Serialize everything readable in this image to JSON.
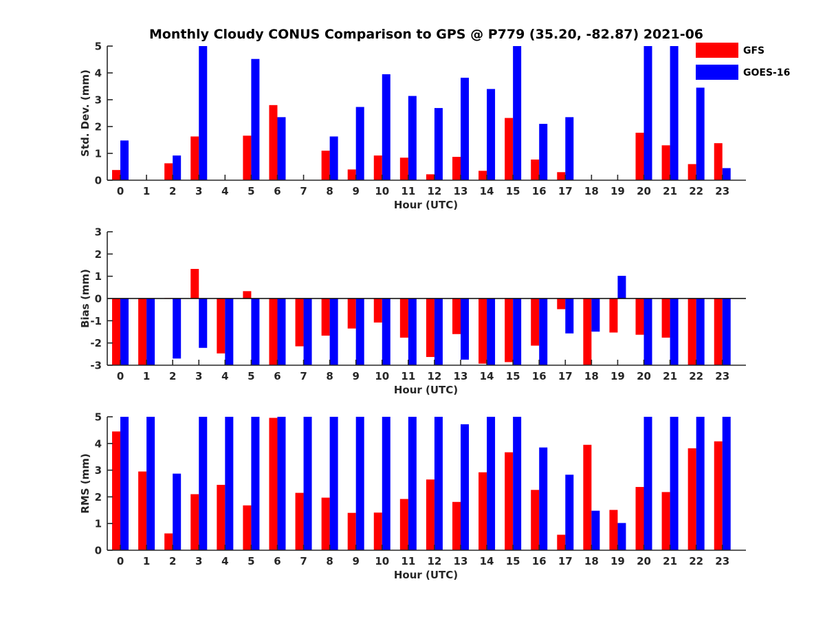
{
  "title": "Monthly Cloudy CONUS Comparison to GPS @ P779 (35.20, -82.87) 2021-06",
  "colors": {
    "GFS": "#ff0000",
    "GOES-16": "#0000ff"
  },
  "legend": {
    "items": [
      "GFS",
      "GOES-16"
    ],
    "placement": "top-right"
  },
  "chart_data": [
    {
      "type": "bar",
      "ylabel": "Std. Dev. (mm)",
      "xlabel": "Hour (UTC)",
      "ylim": [
        0,
        5
      ],
      "yticks": [
        0,
        1,
        2,
        3,
        4,
        5
      ],
      "categories": [
        "0",
        "1",
        "2",
        "3",
        "4",
        "5",
        "6",
        "7",
        "8",
        "9",
        "10",
        "11",
        "12",
        "13",
        "14",
        "15",
        "16",
        "17",
        "18",
        "19",
        "20",
        "21",
        "22",
        "23"
      ],
      "series": [
        {
          "name": "GFS",
          "values": [
            0.38,
            null,
            0.63,
            1.63,
            null,
            1.66,
            2.8,
            null,
            1.1,
            0.4,
            0.92,
            0.84,
            0.22,
            0.87,
            0.35,
            2.32,
            0.77,
            0.3,
            null,
            null,
            1.77,
            1.3,
            0.6,
            1.38
          ]
        },
        {
          "name": "GOES-16",
          "values": [
            1.48,
            null,
            0.92,
            5,
            null,
            4.52,
            2.35,
            null,
            1.63,
            2.73,
            3.95,
            3.14,
            2.69,
            3.82,
            3.4,
            5,
            2.1,
            2.35,
            null,
            null,
            5,
            5,
            3.45,
            0.45
          ]
        }
      ]
    },
    {
      "type": "bar",
      "ylabel": "Bias (mm)",
      "xlabel": "Hour (UTC)",
      "ylim": [
        -3,
        3
      ],
      "yticks": [
        -3,
        -2,
        -1,
        0,
        1,
        2,
        3
      ],
      "categories": [
        "0",
        "1",
        "2",
        "3",
        "4",
        "5",
        "6",
        "7",
        "8",
        "9",
        "10",
        "11",
        "12",
        "13",
        "14",
        "15",
        "16",
        "17",
        "18",
        "19",
        "20",
        "21",
        "22",
        "23"
      ],
      "series": [
        {
          "name": "GFS",
          "values": [
            -3,
            -3,
            0.02,
            1.33,
            -2.47,
            0.33,
            -3,
            -2.15,
            -1.67,
            -1.35,
            -1.08,
            -1.76,
            -2.63,
            -1.6,
            -2.93,
            -2.86,
            -2.12,
            -0.48,
            -3,
            -1.53,
            -1.63,
            -1.76,
            -3,
            -3
          ]
        },
        {
          "name": "GOES-16",
          "values": [
            -3,
            -3,
            -2.7,
            -2.22,
            -3,
            -3,
            -3,
            -3,
            -3,
            -3,
            -3,
            -3,
            -3,
            -2.75,
            -3,
            -3,
            -3,
            -1.57,
            -1.49,
            1.02,
            -3,
            -3,
            -3,
            -3
          ]
        }
      ]
    },
    {
      "type": "bar",
      "ylabel": "RMS (mm)",
      "xlabel": "Hour (UTC)",
      "ylim": [
        0,
        5
      ],
      "yticks": [
        0,
        1,
        2,
        3,
        4,
        5
      ],
      "categories": [
        "0",
        "1",
        "2",
        "3",
        "4",
        "5",
        "6",
        "7",
        "8",
        "9",
        "10",
        "11",
        "12",
        "13",
        "14",
        "15",
        "16",
        "17",
        "18",
        "19",
        "20",
        "21",
        "22",
        "23"
      ],
      "series": [
        {
          "name": "GFS",
          "values": [
            4.45,
            2.95,
            0.63,
            2.1,
            2.45,
            1.68,
            4.96,
            2.15,
            1.97,
            1.4,
            1.41,
            1.92,
            2.65,
            1.81,
            2.92,
            3.67,
            2.26,
            0.58,
            3.95,
            1.51,
            2.37,
            2.18,
            3.82,
            4.08
          ]
        },
        {
          "name": "GOES-16",
          "values": [
            5,
            5,
            2.87,
            5,
            5,
            5,
            5,
            5,
            5,
            5,
            5,
            5,
            5,
            4.72,
            5,
            5,
            3.85,
            2.83,
            1.48,
            1.02,
            5,
            5,
            5,
            5
          ]
        }
      ]
    }
  ]
}
